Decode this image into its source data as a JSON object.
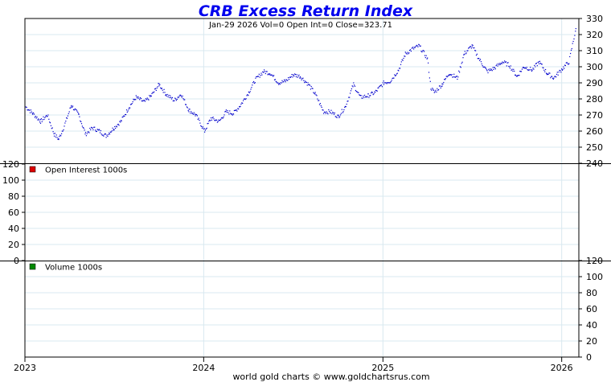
{
  "colors": {
    "title": "#0000ee",
    "price_points": "#0000cc",
    "grid": "#d8e8f0",
    "open_interest_marker": "#dd0000",
    "volume_marker": "#008800"
  },
  "chart_data": [
    {
      "type": "scatter",
      "title": "CRB Excess Return Index",
      "subtitle": "Jan-29  2026   Vol=0   Open Int=0   Close=323.71",
      "ylim": [
        240,
        330
      ],
      "y_ticks": [
        "330",
        "320",
        "310",
        "300",
        "290",
        "280",
        "270",
        "260",
        "250",
        "240"
      ],
      "x_labels": [
        "2023",
        "2024",
        "2025",
        "2026"
      ],
      "xlim": [
        "2023-01-01",
        "2026-02-05"
      ],
      "grid": true,
      "series": [
        {
          "values_note_x": "dates",
          "x": [
            "2023-01-02",
            "2023-01-16",
            "2023-02-01",
            "2023-02-15",
            "2023-03-01",
            "2023-03-10",
            "2023-03-20",
            "2023-04-05",
            "2023-04-20",
            "2023-05-04",
            "2023-05-18",
            "2023-06-01",
            "2023-06-15",
            "2023-07-01",
            "2023-07-15",
            "2023-08-01",
            "2023-08-15",
            "2023-09-01",
            "2023-09-15",
            "2023-10-01",
            "2023-10-15",
            "2023-11-01",
            "2023-11-15",
            "2023-12-01",
            "2023-12-15",
            "2024-01-02",
            "2024-01-15",
            "2024-02-01",
            "2024-02-15",
            "2024-03-01",
            "2024-03-15",
            "2024-04-01",
            "2024-04-15",
            "2024-05-01",
            "2024-05-15",
            "2024-06-01",
            "2024-06-15",
            "2024-07-01",
            "2024-07-15",
            "2024-08-01",
            "2024-08-15",
            "2024-09-01",
            "2024-09-15",
            "2024-10-01",
            "2024-10-15",
            "2024-11-01",
            "2024-11-15",
            "2024-12-01",
            "2024-12-15",
            "2025-01-02",
            "2025-01-15",
            "2025-02-01",
            "2025-02-15",
            "2025-03-01",
            "2025-03-15",
            "2025-04-01",
            "2025-04-08",
            "2025-04-15",
            "2025-05-01",
            "2025-05-15",
            "2025-06-01",
            "2025-06-15",
            "2025-07-01",
            "2025-07-15",
            "2025-08-01",
            "2025-08-15",
            "2025-09-01",
            "2025-09-15",
            "2025-10-01",
            "2025-10-15",
            "2025-11-01",
            "2025-11-15",
            "2025-12-01",
            "2025-12-15",
            "2026-01-02",
            "2026-01-15",
            "2026-01-29"
          ],
          "values": [
            275,
            271,
            266,
            270,
            258,
            255,
            262,
            276,
            270,
            258,
            262,
            260,
            257,
            262,
            266,
            275,
            281,
            278,
            282,
            289,
            283,
            279,
            283,
            273,
            270,
            260,
            268,
            266,
            272,
            271,
            276,
            284,
            292,
            297,
            296,
            290,
            291,
            295,
            294,
            289,
            283,
            272,
            272,
            269,
            275,
            289,
            281,
            282,
            284,
            290,
            291,
            298,
            308,
            311,
            313,
            305,
            287,
            284,
            289,
            296,
            293,
            308,
            313,
            305,
            297,
            299,
            303,
            301,
            294,
            300,
            298,
            303,
            296,
            293,
            299,
            303,
            323.71
          ]
        }
      ]
    },
    {
      "type": "line",
      "legend": "Open Interest  1000s",
      "ylim": [
        0,
        120
      ],
      "y_ticks": [
        "120",
        "100",
        "80",
        "60",
        "40",
        "20",
        "0"
      ],
      "series": []
    },
    {
      "type": "bar",
      "legend": "Volume  1000s",
      "ylim": [
        0,
        120
      ],
      "y_ticks": [
        "120",
        "100",
        "80",
        "60",
        "40",
        "20",
        "0"
      ],
      "series": []
    }
  ],
  "footer": "world gold charts © www.goldchartsrus.com"
}
